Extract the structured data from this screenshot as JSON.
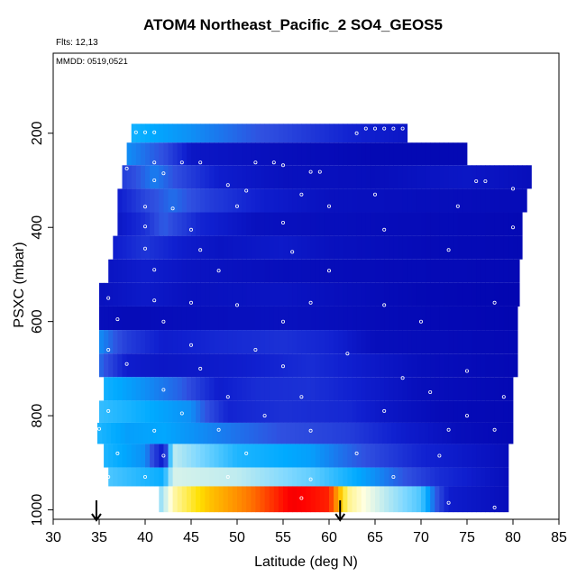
{
  "chart_data": {
    "type": "heatmap",
    "title": "ATOM4 Northeast_Pacific_2 SO4_GEOS5",
    "annotations": {
      "flights": "Flts: 12,13",
      "dates": "MMDD: 0519,0521"
    },
    "xlabel": "Latitude (deg N)",
    "ylabel": "PSXC (mbar)",
    "xlim": [
      30,
      85
    ],
    "ylim": [
      1020,
      30
    ],
    "x_ticks": [
      "30",
      "35",
      "40",
      "45",
      "50",
      "55",
      "60",
      "65",
      "70",
      "75",
      "80",
      "85"
    ],
    "y_ticks": [
      "200",
      "400",
      "600",
      "800",
      "1000"
    ],
    "y_tick_values": [
      200,
      400,
      600,
      800,
      1000
    ],
    "arrows_latitude": [
      34.7,
      61.2
    ],
    "color_scale": [
      "#0000aa",
      "#1020d0",
      "#3050e0",
      "#00aaff",
      "#7fd8ff",
      "#ffffe0",
      "#ffe000",
      "#ff8000",
      "#ff0000",
      "#a00000"
    ],
    "colorscale_note": "",
    "bands": [
      {
        "p_top": 180,
        "p_bot": 220,
        "lat_start": 38.5,
        "lat_end": 68.5,
        "stops": [
          [
            38.5,
            0.35
          ],
          [
            45,
            0.3
          ],
          [
            55,
            0.2
          ],
          [
            62,
            0.12
          ],
          [
            68.5,
            0.08
          ]
        ]
      },
      {
        "p_top": 220,
        "p_bot": 268,
        "lat_start": 38.0,
        "lat_end": 75.0,
        "stops": [
          [
            38,
            0.3
          ],
          [
            42,
            0.22
          ],
          [
            45,
            0.08
          ],
          [
            55,
            0.05
          ],
          [
            65,
            0.03
          ],
          [
            75,
            0.03
          ]
        ]
      },
      {
        "p_top": 268,
        "p_bot": 318,
        "lat_start": 37.5,
        "lat_end": 82.0,
        "stops": [
          [
            37.5,
            0.18
          ],
          [
            41,
            0.28
          ],
          [
            44,
            0.2
          ],
          [
            48,
            0.1
          ],
          [
            55,
            0.06
          ],
          [
            65,
            0.05
          ],
          [
            75,
            0.08
          ],
          [
            82,
            0.05
          ]
        ]
      },
      {
        "p_top": 318,
        "p_bot": 368,
        "lat_start": 37.0,
        "lat_end": 81.5,
        "stops": [
          [
            37,
            0.1
          ],
          [
            40,
            0.2
          ],
          [
            43,
            0.26
          ],
          [
            47,
            0.18
          ],
          [
            53,
            0.1
          ],
          [
            60,
            0.06
          ],
          [
            70,
            0.05
          ],
          [
            81.5,
            0.04
          ]
        ]
      },
      {
        "p_top": 368,
        "p_bot": 418,
        "lat_start": 37.0,
        "lat_end": 81.0,
        "stops": [
          [
            37,
            0.08
          ],
          [
            40,
            0.15
          ],
          [
            42,
            0.24
          ],
          [
            46,
            0.12
          ],
          [
            52,
            0.06
          ],
          [
            60,
            0.05
          ],
          [
            70,
            0.04
          ],
          [
            81,
            0.03
          ]
        ]
      },
      {
        "p_top": 418,
        "p_bot": 468,
        "lat_start": 36.5,
        "lat_end": 81.0,
        "stops": [
          [
            36.5,
            0.1
          ],
          [
            40,
            0.16
          ],
          [
            44,
            0.1
          ],
          [
            48,
            0.07
          ],
          [
            55,
            0.09
          ],
          [
            60,
            0.06
          ],
          [
            70,
            0.04
          ],
          [
            81,
            0.03
          ]
        ]
      },
      {
        "p_top": 468,
        "p_bot": 518,
        "lat_start": 36.0,
        "lat_end": 80.7,
        "stops": [
          [
            36,
            0.07
          ],
          [
            40,
            0.1
          ],
          [
            45,
            0.07
          ],
          [
            55,
            0.05
          ],
          [
            65,
            0.04
          ],
          [
            80.7,
            0.03
          ]
        ]
      },
      {
        "p_top": 518,
        "p_bot": 568,
        "lat_start": 35.0,
        "lat_end": 80.7,
        "stops": [
          [
            35,
            0.06
          ],
          [
            40,
            0.09
          ],
          [
            45,
            0.06
          ],
          [
            55,
            0.07
          ],
          [
            62,
            0.05
          ],
          [
            70,
            0.03
          ],
          [
            80.7,
            0.02
          ]
        ]
      },
      {
        "p_top": 568,
        "p_bot": 618,
        "lat_start": 35.0,
        "lat_end": 80.5,
        "stops": [
          [
            35,
            0.05
          ],
          [
            38,
            0.04
          ],
          [
            45,
            0.05
          ],
          [
            55,
            0.06
          ],
          [
            65,
            0.04
          ],
          [
            80.5,
            0.02
          ]
        ]
      },
      {
        "p_top": 618,
        "p_bot": 668,
        "lat_start": 35.0,
        "lat_end": 80.5,
        "stops": [
          [
            35,
            0.3
          ],
          [
            38,
            0.18
          ],
          [
            42,
            0.1
          ],
          [
            48,
            0.13
          ],
          [
            55,
            0.15
          ],
          [
            60,
            0.12
          ],
          [
            65,
            0.05
          ],
          [
            80.5,
            0.03
          ]
        ]
      },
      {
        "p_top": 668,
        "p_bot": 718,
        "lat_start": 35.0,
        "lat_end": 80.5,
        "stops": [
          [
            35,
            0.26
          ],
          [
            38,
            0.1
          ],
          [
            42,
            0.08
          ],
          [
            50,
            0.1
          ],
          [
            58,
            0.14
          ],
          [
            63,
            0.1
          ],
          [
            70,
            0.05
          ],
          [
            80.5,
            0.03
          ]
        ]
      },
      {
        "p_top": 718,
        "p_bot": 768,
        "lat_start": 35.5,
        "lat_end": 80.0,
        "stops": [
          [
            35.5,
            0.35
          ],
          [
            40,
            0.3
          ],
          [
            44,
            0.24
          ],
          [
            48,
            0.1
          ],
          [
            52,
            0.14
          ],
          [
            58,
            0.15
          ],
          [
            64,
            0.1
          ],
          [
            70,
            0.05
          ],
          [
            80,
            0.03
          ]
        ]
      },
      {
        "p_top": 768,
        "p_bot": 815,
        "lat_start": 35.0,
        "lat_end": 80.0,
        "stops": [
          [
            35,
            0.38
          ],
          [
            40,
            0.34
          ],
          [
            45,
            0.3
          ],
          [
            49,
            0.12
          ],
          [
            55,
            0.15
          ],
          [
            62,
            0.13
          ],
          [
            66,
            0.08
          ],
          [
            72,
            0.04
          ],
          [
            80,
            0.03
          ]
        ]
      },
      {
        "p_top": 815,
        "p_bot": 860,
        "lat_start": 34.8,
        "lat_end": 80.0,
        "stops": [
          [
            34.8,
            0.36
          ],
          [
            38,
            0.32
          ],
          [
            42,
            0.33
          ],
          [
            48,
            0.28
          ],
          [
            55,
            0.22
          ],
          [
            62,
            0.18
          ],
          [
            68,
            0.1
          ],
          [
            74,
            0.05
          ],
          [
            80,
            0.03
          ]
        ]
      },
      {
        "p_top": 860,
        "p_bot": 910,
        "lat_start": 35.5,
        "lat_end": 79.5,
        "stops": [
          [
            35.5,
            0.36
          ],
          [
            40,
            0.3
          ],
          [
            42,
            0.08
          ],
          [
            43,
            0.5
          ],
          [
            46,
            0.44
          ],
          [
            50,
            0.36
          ],
          [
            58,
            0.32
          ],
          [
            64,
            0.22
          ],
          [
            70,
            0.12
          ],
          [
            79.5,
            0.05
          ]
        ]
      },
      {
        "p_top": 910,
        "p_bot": 950,
        "lat_start": 36.0,
        "lat_end": 79.5,
        "stops": [
          [
            36,
            0.4
          ],
          [
            40,
            0.36
          ],
          [
            42,
            0.34
          ],
          [
            43,
            0.52
          ],
          [
            50,
            0.5
          ],
          [
            58,
            0.42
          ],
          [
            65,
            0.3
          ],
          [
            72,
            0.14
          ],
          [
            79.5,
            0.05
          ]
        ]
      },
      {
        "p_top": 950,
        "p_bot": 1005,
        "lat_start": 41.5,
        "lat_end": 79.5,
        "stops": [
          [
            41.5,
            0.45
          ],
          [
            43,
            0.58
          ],
          [
            47,
            0.7
          ],
          [
            52,
            0.8
          ],
          [
            56,
            0.9
          ],
          [
            60,
            0.86
          ],
          [
            62,
            0.6
          ],
          [
            66,
            0.5
          ],
          [
            70,
            0.4
          ],
          [
            73,
            0.1
          ],
          [
            79.5,
            0.05
          ]
        ]
      }
    ],
    "sample_points": [
      {
        "lat": 39,
        "p": 198
      },
      {
        "lat": 40,
        "p": 198
      },
      {
        "lat": 41,
        "p": 198
      },
      {
        "lat": 64,
        "p": 190
      },
      {
        "lat": 65,
        "p": 190
      },
      {
        "lat": 66,
        "p": 190
      },
      {
        "lat": 67,
        "p": 190
      },
      {
        "lat": 68,
        "p": 190
      },
      {
        "lat": 63,
        "p": 200
      },
      {
        "lat": 69,
        "p": 212
      },
      {
        "lat": 41,
        "p": 262
      },
      {
        "lat": 44,
        "p": 262
      },
      {
        "lat": 46,
        "p": 262
      },
      {
        "lat": 52,
        "p": 262
      },
      {
        "lat": 54,
        "p": 262
      },
      {
        "lat": 55,
        "p": 268
      },
      {
        "lat": 59,
        "p": 282
      },
      {
        "lat": 58,
        "p": 282
      },
      {
        "lat": 77,
        "p": 302
      },
      {
        "lat": 76,
        "p": 302
      },
      {
        "lat": 42,
        "p": 285
      },
      {
        "lat": 38,
        "p": 275
      },
      {
        "lat": 41,
        "p": 300
      },
      {
        "lat": 49,
        "p": 310
      },
      {
        "lat": 51,
        "p": 322
      },
      {
        "lat": 57,
        "p": 330
      },
      {
        "lat": 65,
        "p": 330
      },
      {
        "lat": 80,
        "p": 318
      },
      {
        "lat": 40,
        "p": 356
      },
      {
        "lat": 43,
        "p": 360
      },
      {
        "lat": 50,
        "p": 355
      },
      {
        "lat": 60,
        "p": 355
      },
      {
        "lat": 74,
        "p": 355
      },
      {
        "lat": 40,
        "p": 398
      },
      {
        "lat": 45,
        "p": 405
      },
      {
        "lat": 55,
        "p": 390
      },
      {
        "lat": 66,
        "p": 405
      },
      {
        "lat": 80,
        "p": 400
      },
      {
        "lat": 40,
        "p": 445
      },
      {
        "lat": 46,
        "p": 448
      },
      {
        "lat": 56,
        "p": 452
      },
      {
        "lat": 73,
        "p": 448
      },
      {
        "lat": 41,
        "p": 490
      },
      {
        "lat": 48,
        "p": 492
      },
      {
        "lat": 60,
        "p": 492
      },
      {
        "lat": 36,
        "p": 550
      },
      {
        "lat": 41,
        "p": 555
      },
      {
        "lat": 45,
        "p": 560
      },
      {
        "lat": 50,
        "p": 565
      },
      {
        "lat": 58,
        "p": 560
      },
      {
        "lat": 66,
        "p": 565
      },
      {
        "lat": 78,
        "p": 560
      },
      {
        "lat": 37,
        "p": 595
      },
      {
        "lat": 42,
        "p": 600
      },
      {
        "lat": 55,
        "p": 600
      },
      {
        "lat": 70,
        "p": 600
      },
      {
        "lat": 36,
        "p": 660
      },
      {
        "lat": 45,
        "p": 650
      },
      {
        "lat": 52,
        "p": 660
      },
      {
        "lat": 62,
        "p": 668
      },
      {
        "lat": 38,
        "p": 690
      },
      {
        "lat": 46,
        "p": 700
      },
      {
        "lat": 55,
        "p": 695
      },
      {
        "lat": 68,
        "p": 720
      },
      {
        "lat": 75,
        "p": 705
      },
      {
        "lat": 42,
        "p": 745
      },
      {
        "lat": 49,
        "p": 760
      },
      {
        "lat": 57,
        "p": 760
      },
      {
        "lat": 71,
        "p": 750
      },
      {
        "lat": 79,
        "p": 760
      },
      {
        "lat": 36,
        "p": 790
      },
      {
        "lat": 44,
        "p": 795
      },
      {
        "lat": 53,
        "p": 800
      },
      {
        "lat": 66,
        "p": 790
      },
      {
        "lat": 75,
        "p": 800
      },
      {
        "lat": 35,
        "p": 828
      },
      {
        "lat": 41,
        "p": 832
      },
      {
        "lat": 48,
        "p": 830
      },
      {
        "lat": 58,
        "p": 832
      },
      {
        "lat": 73,
        "p": 830
      },
      {
        "lat": 78,
        "p": 830
      },
      {
        "lat": 37,
        "p": 880
      },
      {
        "lat": 42,
        "p": 885
      },
      {
        "lat": 51,
        "p": 880
      },
      {
        "lat": 63,
        "p": 880
      },
      {
        "lat": 72,
        "p": 885
      },
      {
        "lat": 36,
        "p": 930
      },
      {
        "lat": 40,
        "p": 930
      },
      {
        "lat": 49,
        "p": 930
      },
      {
        "lat": 58,
        "p": 935
      },
      {
        "lat": 67,
        "p": 930
      },
      {
        "lat": 41,
        "p": 995
      },
      {
        "lat": 57,
        "p": 975
      },
      {
        "lat": 73,
        "p": 985
      },
      {
        "lat": 78,
        "p": 995
      }
    ]
  }
}
